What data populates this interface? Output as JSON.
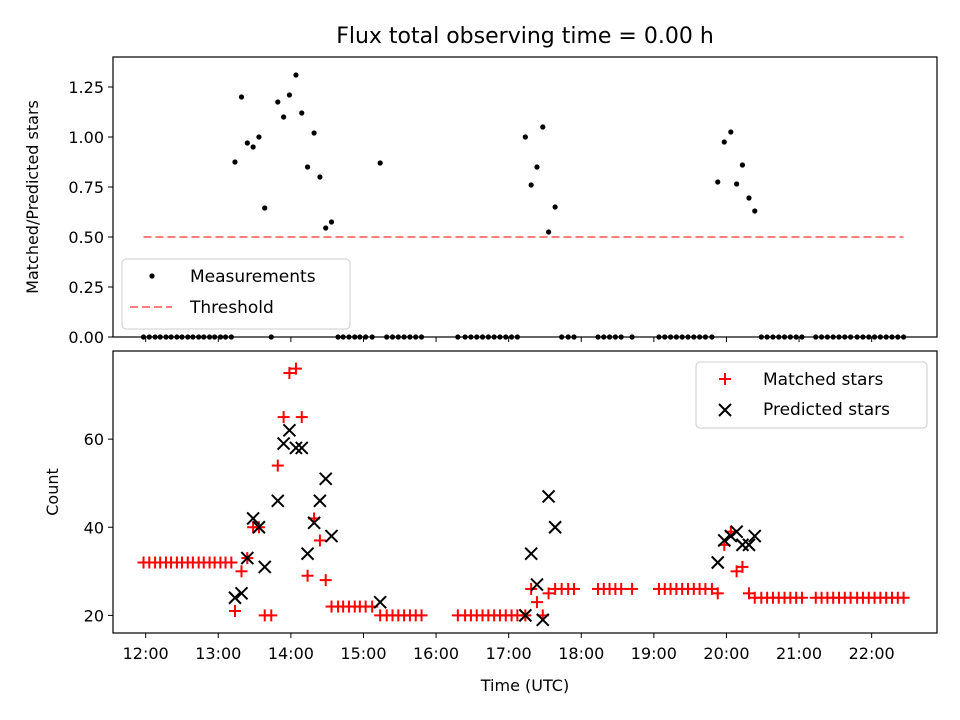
{
  "chart_data": [
    {
      "type": "scatter",
      "title": "Flux total observing time = 0.00 h",
      "xlabel": "",
      "ylabel": "Matched/Predicted stars",
      "xlim": [
        11.55,
        22.9
      ],
      "ylim": [
        0.0,
        1.4
      ],
      "yticks": [
        0.0,
        0.25,
        0.5,
        0.75,
        1.0,
        1.25
      ],
      "ytick_labels": [
        "0.00",
        "0.25",
        "0.50",
        "0.75",
        "1.00",
        "1.25"
      ],
      "xticks": [
        12,
        13,
        14,
        15,
        16,
        17,
        18,
        19,
        20,
        21,
        22
      ],
      "legend_position": "lower-left",
      "series": [
        {
          "name": "Measurements",
          "marker": "dot",
          "color": "#000000",
          "points": [
            [
              11.97,
              0
            ],
            [
              12.05,
              0
            ],
            [
              12.13,
              0
            ],
            [
              12.2,
              0
            ],
            [
              12.28,
              0
            ],
            [
              12.35,
              0
            ],
            [
              12.43,
              0
            ],
            [
              12.5,
              0
            ],
            [
              12.58,
              0
            ],
            [
              12.65,
              0
            ],
            [
              12.73,
              0
            ],
            [
              12.8,
              0
            ],
            [
              12.88,
              0
            ],
            [
              12.95,
              0
            ],
            [
              13.03,
              0
            ],
            [
              13.1,
              0
            ],
            [
              13.18,
              0
            ],
            [
              13.23,
              0.875
            ],
            [
              13.32,
              1.2
            ],
            [
              13.4,
              0.97
            ],
            [
              13.48,
              0.95
            ],
            [
              13.56,
              1.0
            ],
            [
              13.64,
              0.645
            ],
            [
              13.73,
              0
            ],
            [
              13.82,
              1.175
            ],
            [
              13.9,
              1.1
            ],
            [
              13.98,
              1.21
            ],
            [
              14.07,
              1.31
            ],
            [
              14.15,
              1.12
            ],
            [
              14.23,
              0.85
            ],
            [
              14.32,
              1.02
            ],
            [
              14.4,
              0.8
            ],
            [
              14.48,
              0.545
            ],
            [
              14.56,
              0.575
            ],
            [
              14.65,
              0
            ],
            [
              14.72,
              0
            ],
            [
              14.8,
              0
            ],
            [
              14.88,
              0
            ],
            [
              14.95,
              0
            ],
            [
              15.03,
              0
            ],
            [
              15.12,
              0
            ],
            [
              15.23,
              0.87
            ],
            [
              15.32,
              0
            ],
            [
              15.4,
              0
            ],
            [
              15.48,
              0
            ],
            [
              15.56,
              0
            ],
            [
              15.64,
              0
            ],
            [
              15.72,
              0
            ],
            [
              15.8,
              0
            ],
            [
              16.3,
              0
            ],
            [
              16.4,
              0
            ],
            [
              16.48,
              0
            ],
            [
              16.56,
              0
            ],
            [
              16.64,
              0
            ],
            [
              16.72,
              0
            ],
            [
              16.8,
              0
            ],
            [
              16.88,
              0
            ],
            [
              16.96,
              0
            ],
            [
              17.04,
              0
            ],
            [
              17.12,
              0
            ],
            [
              17.23,
              1.0
            ],
            [
              17.31,
              0.76
            ],
            [
              17.39,
              0.85
            ],
            [
              17.47,
              1.05
            ],
            [
              17.55,
              0.525
            ],
            [
              17.64,
              0.65
            ],
            [
              17.73,
              0
            ],
            [
              17.82,
              0
            ],
            [
              17.9,
              0
            ],
            [
              18.23,
              0
            ],
            [
              18.31,
              0
            ],
            [
              18.39,
              0
            ],
            [
              18.47,
              0
            ],
            [
              18.55,
              0
            ],
            [
              18.7,
              0
            ],
            [
              19.07,
              0
            ],
            [
              19.15,
              0
            ],
            [
              19.23,
              0
            ],
            [
              19.31,
              0
            ],
            [
              19.39,
              0
            ],
            [
              19.47,
              0
            ],
            [
              19.55,
              0
            ],
            [
              19.63,
              0
            ],
            [
              19.71,
              0
            ],
            [
              19.8,
              0
            ],
            [
              19.88,
              0.775
            ],
            [
              19.97,
              0.975
            ],
            [
              20.06,
              1.025
            ],
            [
              20.14,
              0.765
            ],
            [
              20.22,
              0.86
            ],
            [
              20.31,
              0.695
            ],
            [
              20.39,
              0.63
            ],
            [
              20.48,
              0
            ],
            [
              20.56,
              0
            ],
            [
              20.64,
              0
            ],
            [
              20.72,
              0
            ],
            [
              20.8,
              0
            ],
            [
              20.88,
              0
            ],
            [
              20.96,
              0
            ],
            [
              21.04,
              0
            ],
            [
              21.23,
              0
            ],
            [
              21.31,
              0
            ],
            [
              21.39,
              0
            ],
            [
              21.47,
              0
            ],
            [
              21.55,
              0
            ],
            [
              21.63,
              0
            ],
            [
              21.71,
              0
            ],
            [
              21.8,
              0
            ],
            [
              21.88,
              0
            ],
            [
              21.96,
              0
            ],
            [
              22.04,
              0
            ],
            [
              22.12,
              0
            ],
            [
              22.2,
              0
            ],
            [
              22.28,
              0
            ],
            [
              22.36,
              0
            ],
            [
              22.44,
              0
            ]
          ]
        },
        {
          "name": "Threshold",
          "marker": "dashed-line",
          "color": "#ff7f7f",
          "points": [
            [
              11.97,
              0.5
            ],
            [
              22.44,
              0.5
            ]
          ]
        }
      ]
    },
    {
      "type": "scatter",
      "title": "",
      "xlabel": "Time (UTC)",
      "ylabel": "Count",
      "xlim": [
        11.55,
        22.9
      ],
      "ylim": [
        16,
        80
      ],
      "yticks": [
        20,
        40,
        60
      ],
      "ytick_labels": [
        "20",
        "40",
        "60"
      ],
      "xticks": [
        12,
        13,
        14,
        15,
        16,
        17,
        18,
        19,
        20,
        21,
        22
      ],
      "xtick_labels": [
        "12:00",
        "13:00",
        "14:00",
        "15:00",
        "16:00",
        "17:00",
        "18:00",
        "19:00",
        "20:00",
        "21:00",
        "22:00"
      ],
      "legend_position": "top-right",
      "series": [
        {
          "name": "Matched stars",
          "marker": "plus",
          "color": "#ff0000",
          "points": [
            [
              11.97,
              32
            ],
            [
              12.05,
              32
            ],
            [
              12.13,
              32
            ],
            [
              12.2,
              32
            ],
            [
              12.28,
              32
            ],
            [
              12.35,
              32
            ],
            [
              12.43,
              32
            ],
            [
              12.5,
              32
            ],
            [
              12.58,
              32
            ],
            [
              12.65,
              32
            ],
            [
              12.73,
              32
            ],
            [
              12.8,
              32
            ],
            [
              12.88,
              32
            ],
            [
              12.95,
              32
            ],
            [
              13.03,
              32
            ],
            [
              13.1,
              32
            ],
            [
              13.18,
              32
            ],
            [
              13.23,
              21
            ],
            [
              13.32,
              30
            ],
            [
              13.4,
              33
            ],
            [
              13.48,
              40
            ],
            [
              13.56,
              40
            ],
            [
              13.64,
              20
            ],
            [
              13.73,
              20
            ],
            [
              13.82,
              54
            ],
            [
              13.9,
              65
            ],
            [
              13.98,
              75
            ],
            [
              14.07,
              76
            ],
            [
              14.15,
              65
            ],
            [
              14.23,
              29
            ],
            [
              14.32,
              42
            ],
            [
              14.4,
              37
            ],
            [
              14.48,
              28
            ],
            [
              14.56,
              22
            ],
            [
              14.65,
              22
            ],
            [
              14.72,
              22
            ],
            [
              14.8,
              22
            ],
            [
              14.88,
              22
            ],
            [
              14.95,
              22
            ],
            [
              15.03,
              22
            ],
            [
              15.12,
              22
            ],
            [
              15.23,
              20
            ],
            [
              15.32,
              20
            ],
            [
              15.4,
              20
            ],
            [
              15.48,
              20
            ],
            [
              15.56,
              20
            ],
            [
              15.64,
              20
            ],
            [
              15.72,
              20
            ],
            [
              15.8,
              20
            ],
            [
              16.3,
              20
            ],
            [
              16.4,
              20
            ],
            [
              16.48,
              20
            ],
            [
              16.56,
              20
            ],
            [
              16.64,
              20
            ],
            [
              16.72,
              20
            ],
            [
              16.8,
              20
            ],
            [
              16.88,
              20
            ],
            [
              16.96,
              20
            ],
            [
              17.04,
              20
            ],
            [
              17.12,
              20
            ],
            [
              17.23,
              20
            ],
            [
              17.31,
              26
            ],
            [
              17.39,
              23
            ],
            [
              17.47,
              20
            ],
            [
              17.55,
              25
            ],
            [
              17.64,
              26
            ],
            [
              17.73,
              26
            ],
            [
              17.82,
              26
            ],
            [
              17.9,
              26
            ],
            [
              18.23,
              26
            ],
            [
              18.31,
              26
            ],
            [
              18.39,
              26
            ],
            [
              18.47,
              26
            ],
            [
              18.55,
              26
            ],
            [
              18.7,
              26
            ],
            [
              19.07,
              26
            ],
            [
              19.15,
              26
            ],
            [
              19.23,
              26
            ],
            [
              19.31,
              26
            ],
            [
              19.39,
              26
            ],
            [
              19.47,
              26
            ],
            [
              19.55,
              26
            ],
            [
              19.63,
              26
            ],
            [
              19.71,
              26
            ],
            [
              19.8,
              26
            ],
            [
              19.88,
              25
            ],
            [
              19.97,
              36
            ],
            [
              20.06,
              39
            ],
            [
              20.14,
              30
            ],
            [
              20.22,
              31
            ],
            [
              20.31,
              25
            ],
            [
              20.39,
              24
            ],
            [
              20.48,
              24
            ],
            [
              20.56,
              24
            ],
            [
              20.64,
              24
            ],
            [
              20.72,
              24
            ],
            [
              20.8,
              24
            ],
            [
              20.88,
              24
            ],
            [
              20.96,
              24
            ],
            [
              21.04,
              24
            ],
            [
              21.23,
              24
            ],
            [
              21.31,
              24
            ],
            [
              21.39,
              24
            ],
            [
              21.47,
              24
            ],
            [
              21.55,
              24
            ],
            [
              21.63,
              24
            ],
            [
              21.71,
              24
            ],
            [
              21.8,
              24
            ],
            [
              21.88,
              24
            ],
            [
              21.96,
              24
            ],
            [
              22.04,
              24
            ],
            [
              22.12,
              24
            ],
            [
              22.2,
              24
            ],
            [
              22.28,
              24
            ],
            [
              22.36,
              24
            ],
            [
              22.44,
              24
            ]
          ]
        },
        {
          "name": "Predicted stars",
          "marker": "x",
          "color": "#000000",
          "points": [
            [
              13.23,
              24
            ],
            [
              13.32,
              25
            ],
            [
              13.4,
              33
            ],
            [
              13.48,
              42
            ],
            [
              13.56,
              40
            ],
            [
              13.64,
              31
            ],
            [
              13.82,
              46
            ],
            [
              13.9,
              59
            ],
            [
              13.98,
              62
            ],
            [
              14.07,
              58
            ],
            [
              14.15,
              58
            ],
            [
              14.23,
              34
            ],
            [
              14.32,
              41
            ],
            [
              14.4,
              46
            ],
            [
              14.48,
              51
            ],
            [
              14.56,
              38
            ],
            [
              15.23,
              23
            ],
            [
              17.23,
              20
            ],
            [
              17.31,
              34
            ],
            [
              17.39,
              27
            ],
            [
              17.47,
              19
            ],
            [
              17.55,
              47
            ],
            [
              17.64,
              40
            ],
            [
              19.88,
              32
            ],
            [
              19.97,
              37
            ],
            [
              20.06,
              38
            ],
            [
              20.14,
              39
            ],
            [
              20.22,
              36
            ],
            [
              20.31,
              36
            ],
            [
              20.39,
              38
            ]
          ]
        }
      ]
    }
  ]
}
